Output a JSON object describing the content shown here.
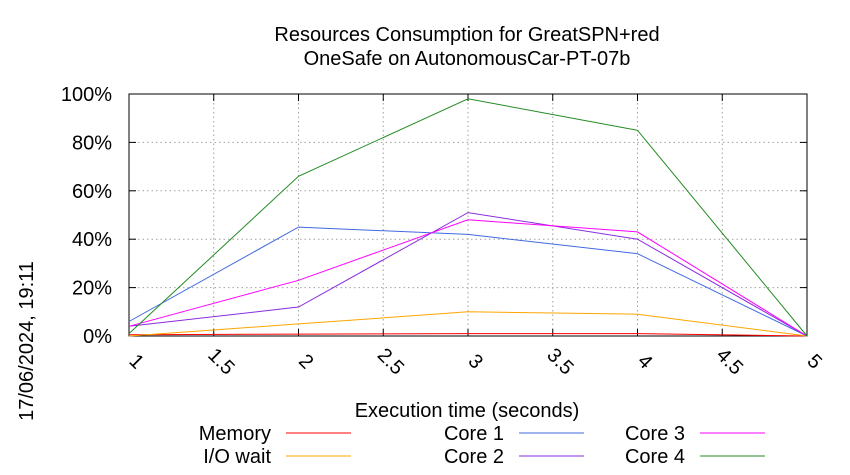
{
  "chart_data": {
    "type": "line",
    "title_lines": [
      "Resources Consumption for GreatSPN+red",
      "OneSafe on AutonomousCar-PT-07b"
    ],
    "xlabel": "Execution time (seconds)",
    "ylabel": "",
    "xlim": [
      1,
      5
    ],
    "ylim": [
      0,
      100
    ],
    "x_ticks": [
      1,
      1.5,
      2,
      2.5,
      3,
      3.5,
      4,
      4.5,
      5
    ],
    "x_tick_labels": [
      "1",
      "1.5",
      "2",
      "2.5",
      "3",
      "3.5",
      "4",
      "4.5",
      "5"
    ],
    "y_ticks": [
      0,
      20,
      40,
      60,
      80,
      100
    ],
    "y_tick_labels": [
      "0%",
      "20%",
      "40%",
      "60%",
      "80%",
      "100%"
    ],
    "grid": true,
    "legend_position": "bottom",
    "timestamp": "17/06/2024, 19:11",
    "series": [
      {
        "name": "Memory",
        "color": "#ff0000",
        "x": [
          1,
          2,
          3,
          4,
          5
        ],
        "y": [
          0.5,
          0.8,
          1.0,
          1.0,
          0
        ]
      },
      {
        "name": "I/O wait",
        "color": "#ffa500",
        "x": [
          1,
          2,
          3,
          4,
          5
        ],
        "y": [
          0,
          5,
          10,
          9,
          0
        ]
      },
      {
        "name": "Core 1",
        "color": "#4169e1",
        "x": [
          1,
          2,
          3,
          4,
          5
        ],
        "y": [
          6,
          45,
          42,
          34,
          0
        ]
      },
      {
        "name": "Core 2",
        "color": "#8a2be2",
        "x": [
          1,
          2,
          3,
          4,
          5
        ],
        "y": [
          4,
          12,
          51,
          40,
          0
        ]
      },
      {
        "name": "Core 3",
        "color": "#ff00ff",
        "x": [
          1,
          2,
          3,
          4,
          5
        ],
        "y": [
          4,
          23,
          48,
          43,
          0
        ]
      },
      {
        "name": "Core 4",
        "color": "#228b22",
        "x": [
          1,
          2,
          3,
          4,
          5
        ],
        "y": [
          1,
          66,
          98,
          85,
          0
        ]
      }
    ]
  }
}
